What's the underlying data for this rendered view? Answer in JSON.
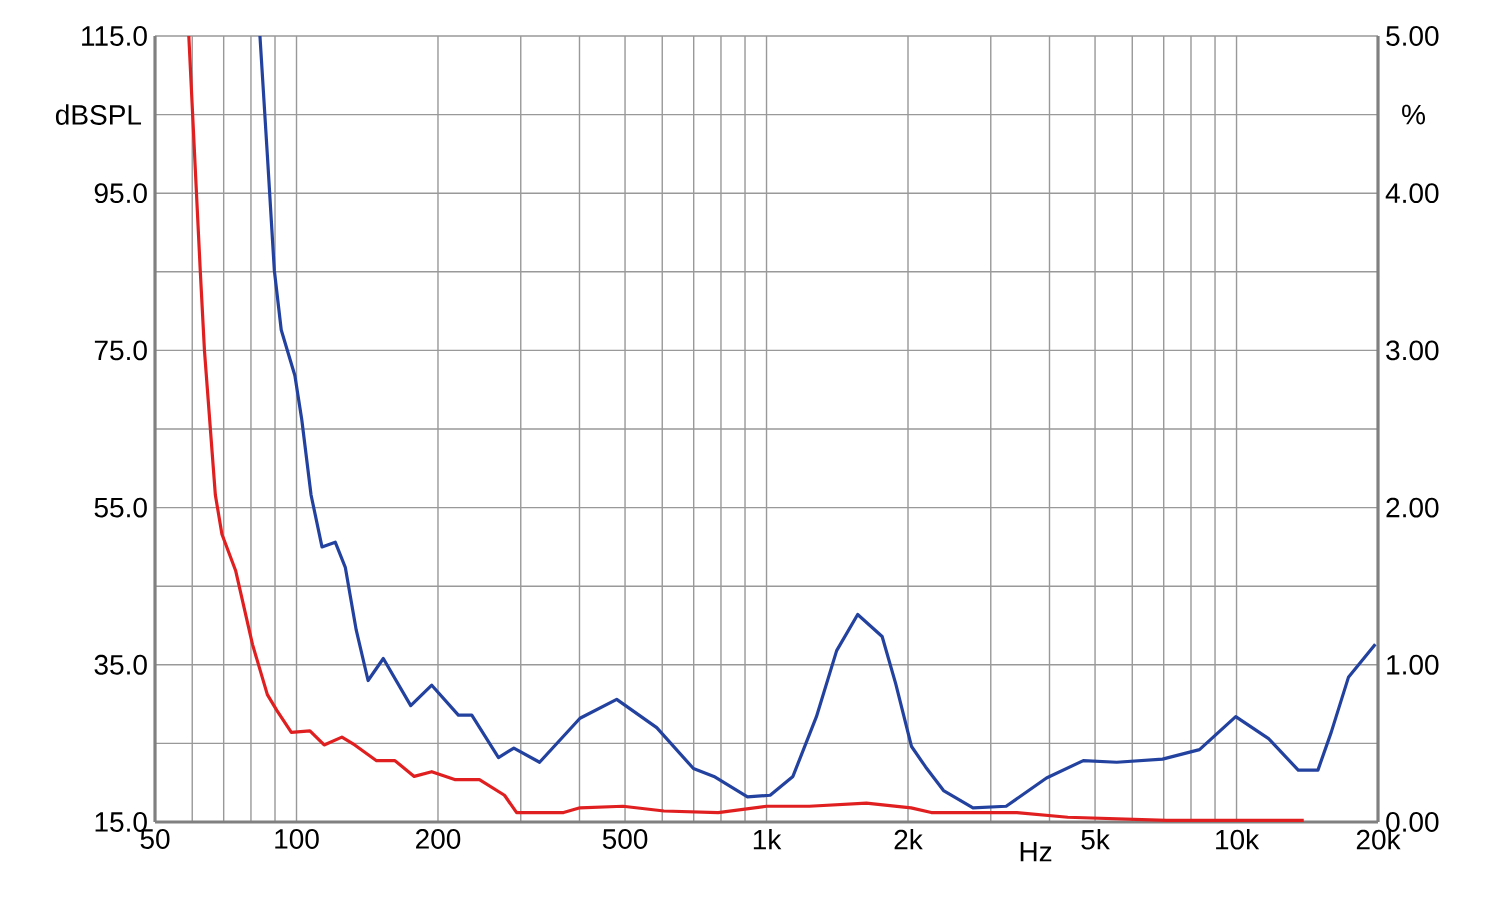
{
  "chart_data": {
    "type": "line",
    "xlabel": "Hz",
    "ylabel": "dBSPL",
    "y2label": "%",
    "log": "x",
    "grid": true,
    "xlim": [
      50,
      20000
    ],
    "xticks": [
      50,
      100,
      200,
      500,
      {
        "value": 1000,
        "label": "1k"
      },
      {
        "value": 2000,
        "label": "2k"
      },
      {
        "value": 5000,
        "label": "5k"
      },
      {
        "value": 10000,
        "label": "10k"
      },
      {
        "value": 20000,
        "label": "20k"
      }
    ],
    "ylim": [
      15,
      115
    ],
    "yticks": [
      {
        "value": 15,
        "label": "15.0"
      },
      {
        "value": 25,
        "label": null
      },
      {
        "value": 35,
        "label": "35.0"
      },
      {
        "value": 45,
        "label": null
      },
      {
        "value": 55,
        "label": "55.0"
      },
      {
        "value": 65,
        "label": null
      },
      {
        "value": 75,
        "label": "75.0"
      },
      {
        "value": 85,
        "label": null
      },
      {
        "value": 95,
        "label": "95.0"
      },
      {
        "value": 105,
        "label": null
      },
      {
        "value": 115,
        "label": "115.0"
      }
    ],
    "y2lim": [
      0,
      5
    ],
    "y2ticks": [
      {
        "value": 0,
        "label": "0.00"
      },
      {
        "value": 1,
        "label": "1.00"
      },
      {
        "value": 2,
        "label": "2.00"
      },
      {
        "value": 3,
        "label": "3.00"
      },
      {
        "value": 4,
        "label": "4.00"
      },
      {
        "value": 5,
        "label": "5.00"
      }
    ],
    "series": [
      {
        "color": "#2342a0",
        "axis": "y2",
        "x": [
          83.6,
          86.7,
          89.7,
          92.8,
          99.2,
          102.6,
          107.4,
          113.3,
          120.9,
          127,
          134,
          142,
          153,
          175,
          194,
          221,
          236,
          269,
          290,
          329,
          401,
          480,
          584,
          699,
          773,
          911,
          1018,
          1138,
          1277,
          1410,
          1563,
          1762,
          1883,
          2035,
          2180,
          2380,
          2750,
          3235,
          3942,
          4720,
          5560,
          6960,
          8340,
          9960,
          11700,
          13530,
          14900,
          15900,
          17300,
          19740
        ],
        "values": [
          5.0,
          4.24,
          3.51,
          3.13,
          2.84,
          2.56,
          2.08,
          1.75,
          1.78,
          1.62,
          1.22,
          0.9,
          1.04,
          0.74,
          0.87,
          0.68,
          0.68,
          0.41,
          0.47,
          0.38,
          0.66,
          0.78,
          0.6,
          0.34,
          0.29,
          0.16,
          0.17,
          0.29,
          0.67,
          1.09,
          1.32,
          1.18,
          0.88,
          0.48,
          0.35,
          0.2,
          0.09,
          0.1,
          0.28,
          0.39,
          0.38,
          0.4,
          0.46,
          0.67,
          0.53,
          0.33,
          0.33,
          0.57,
          0.92,
          1.13
        ]
      },
      {
        "color": "#e02020",
        "axis": "y2",
        "x": [
          59,
          62.4,
          63.7,
          67.2,
          69.4,
          74.2,
          80.6,
          86.7,
          90.8,
          97.5,
          106.8,
          114.5,
          124.9,
          133,
          148,
          162,
          178,
          194,
          217,
          245,
          277,
          294,
          370,
          401,
          495,
          605,
          789,
          1000,
          1233,
          1631,
          2030,
          2242,
          3410,
          4375,
          7100,
          13900
        ],
        "values": [
          5.0,
          3.51,
          3.0,
          2.08,
          1.83,
          1.6,
          1.13,
          0.81,
          0.71,
          0.57,
          0.58,
          0.49,
          0.54,
          0.49,
          0.39,
          0.39,
          0.29,
          0.32,
          0.27,
          0.27,
          0.17,
          0.06,
          0.06,
          0.09,
          0.1,
          0.07,
          0.06,
          0.1,
          0.1,
          0.12,
          0.09,
          0.06,
          0.06,
          0.03,
          0.01,
          0.01
        ]
      }
    ]
  }
}
